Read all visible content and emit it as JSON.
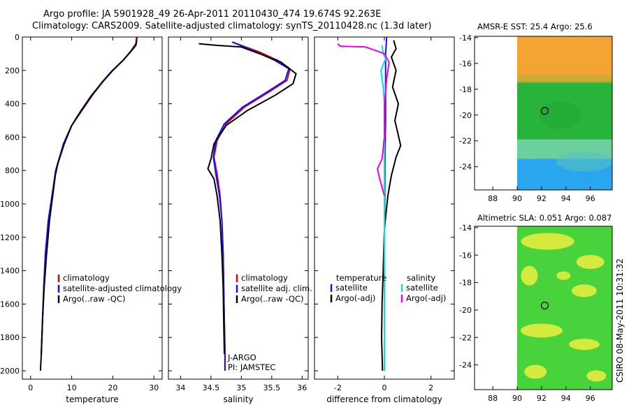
{
  "header": {
    "line1": "Argo profile: JA 5901928_49 26-Apr-2011 20110430_474 19.674S 92.263E",
    "line2": "Climatology: CARS2009. Satellite-adjusted climatology: synTS_20110428.nc (1.3d later)"
  },
  "sidenote": "CSIRO 08-May-2011 10:31:32",
  "colors": {
    "red": "#e00000",
    "blue": "#1010ff",
    "black": "#000000",
    "cyan": "#00e0e0",
    "magenta": "#ee00ee"
  },
  "chart_data": [
    {
      "id": "temperature",
      "type": "line",
      "xlabel": "temperature",
      "ylabel": "",
      "xlim": [
        -2,
        32
      ],
      "ylim": [
        2050,
        0
      ],
      "xticks": [
        0,
        10,
        20,
        30
      ],
      "yticks": [
        0,
        200,
        400,
        600,
        800,
        1000,
        1200,
        1400,
        1600,
        1800,
        2000
      ],
      "legend": [
        "climatology",
        "satellite-adjusted climatology",
        "Argo(..raw -QC)"
      ],
      "series": [
        {
          "name": "climatology",
          "color": "red",
          "points": [
            [
              25.8,
              0
            ],
            [
              25.6,
              40
            ],
            [
              24.5,
              80
            ],
            [
              22.5,
              140
            ],
            [
              20,
              200
            ],
            [
              17.5,
              270
            ],
            [
              15,
              350
            ],
            [
              12.5,
              440
            ],
            [
              10,
              530
            ],
            [
              8,
              640
            ],
            [
              6.2,
              800
            ],
            [
              5.2,
              950
            ],
            [
              4.3,
              1100
            ],
            [
              3.6,
              1300
            ],
            [
              3.2,
              1500
            ],
            [
              2.9,
              1700
            ],
            [
              2.6,
              1900
            ]
          ]
        },
        {
          "name": "satellite-adjusted climatology",
          "color": "blue",
          "points": [
            [
              25.9,
              0
            ],
            [
              25.7,
              40
            ],
            [
              24.6,
              80
            ],
            [
              22.5,
              140
            ],
            [
              19.9,
              200
            ],
            [
              17.4,
              270
            ],
            [
              14.9,
              350
            ],
            [
              12.4,
              440
            ],
            [
              10,
              530
            ],
            [
              8,
              640
            ],
            [
              6.1,
              800
            ],
            [
              5.2,
              950
            ],
            [
              4.3,
              1100
            ],
            [
              3.6,
              1300
            ],
            [
              3.2,
              1500
            ],
            [
              2.9,
              1700
            ],
            [
              2.6,
              1900
            ]
          ]
        },
        {
          "name": "Argo(..raw -QC)",
          "color": "black",
          "points": [
            [
              25.8,
              20
            ],
            [
              25.6,
              50
            ],
            [
              24.6,
              80
            ],
            [
              22.5,
              140
            ],
            [
              20,
              200
            ],
            [
              17.5,
              270
            ],
            [
              14.8,
              350
            ],
            [
              12.3,
              440
            ],
            [
              10,
              530
            ],
            [
              8.2,
              640
            ],
            [
              6.6,
              760
            ],
            [
              6,
              830
            ],
            [
              5.4,
              950
            ],
            [
              4.6,
              1100
            ],
            [
              3.9,
              1300
            ],
            [
              3.3,
              1500
            ],
            [
              2.9,
              1700
            ],
            [
              2.6,
              1900
            ],
            [
              2.4,
              2000
            ]
          ]
        }
      ]
    },
    {
      "id": "salinity",
      "type": "line",
      "xlabel": "salinity",
      "ylabel": "",
      "xlim": [
        33.8,
        36.1
      ],
      "ylim": [
        2050,
        0
      ],
      "xticks": [
        34,
        34.5,
        35,
        35.5,
        36
      ],
      "yticks": [
        0,
        200,
        400,
        600,
        800,
        1000,
        1200,
        1400,
        1600,
        1800,
        2000
      ],
      "legend": [
        "climatology",
        "satellite adj. clim.",
        "Argo(..raw -QC)"
      ],
      "annotation": [
        "J-ARGO",
        "PI: JAMSTEC"
      ],
      "series": [
        {
          "name": "climatology",
          "color": "red",
          "points": [
            [
              34.85,
              30
            ],
            [
              35.3,
              90
            ],
            [
              35.6,
              140
            ],
            [
              35.8,
              190
            ],
            [
              35.75,
              260
            ],
            [
              35.45,
              330
            ],
            [
              35.05,
              420
            ],
            [
              34.75,
              520
            ],
            [
              34.6,
              620
            ],
            [
              34.55,
              720
            ],
            [
              34.6,
              820
            ],
            [
              34.65,
              950
            ],
            [
              34.68,
              1100
            ],
            [
              34.7,
              1300
            ],
            [
              34.71,
              1500
            ],
            [
              34.72,
              1700
            ],
            [
              34.73,
              1900
            ],
            [
              34.73,
              2000
            ]
          ]
        },
        {
          "name": "satellite adj. clim.",
          "color": "blue",
          "points": [
            [
              34.85,
              30
            ],
            [
              35.25,
              90
            ],
            [
              35.55,
              140
            ],
            [
              35.78,
              190
            ],
            [
              35.72,
              260
            ],
            [
              35.42,
              330
            ],
            [
              35.02,
              420
            ],
            [
              34.72,
              520
            ],
            [
              34.58,
              620
            ],
            [
              34.54,
              720
            ],
            [
              34.58,
              820
            ],
            [
              34.64,
              950
            ],
            [
              34.68,
              1100
            ],
            [
              34.7,
              1300
            ],
            [
              34.71,
              1500
            ],
            [
              34.72,
              1700
            ],
            [
              34.73,
              1900
            ],
            [
              34.73,
              2000
            ]
          ]
        },
        {
          "name": "Argo(..raw -QC)",
          "color": "black",
          "points": [
            [
              34.3,
              40
            ],
            [
              34.6,
              50
            ],
            [
              35,
              60
            ],
            [
              35.3,
              100
            ],
            [
              35.65,
              150
            ],
            [
              35.9,
              220
            ],
            [
              35.85,
              280
            ],
            [
              35.55,
              350
            ],
            [
              35.1,
              440
            ],
            [
              34.75,
              530
            ],
            [
              34.55,
              640
            ],
            [
              34.5,
              730
            ],
            [
              34.45,
              790
            ],
            [
              34.55,
              850
            ],
            [
              34.6,
              950
            ],
            [
              34.65,
              1100
            ],
            [
              34.68,
              1300
            ],
            [
              34.7,
              1500
            ],
            [
              34.71,
              1700
            ],
            [
              34.72,
              1900
            ]
          ]
        }
      ]
    },
    {
      "id": "difference",
      "type": "line",
      "xlabel": "difference from climatology",
      "ylabel": "",
      "xlim": [
        -3,
        3
      ],
      "ylim": [
        2050,
        0
      ],
      "xticks": [
        -2,
        0,
        2
      ],
      "yticks": [
        0,
        200,
        400,
        600,
        800,
        1000,
        1200,
        1400,
        1600,
        1800,
        2000
      ],
      "legend_left": [
        "temperature",
        "satellite",
        "Argo(-adj)"
      ],
      "legend_right": [
        "salinity",
        "satellite",
        "Argo(-adj)"
      ],
      "series": [
        {
          "name": "temperature satellite",
          "color": "blue",
          "points": [
            [
              0.1,
              0
            ],
            [
              0.05,
              100
            ],
            [
              0.05,
              300
            ],
            [
              0.05,
              500
            ],
            [
              0.03,
              700
            ],
            [
              0.02,
              900
            ],
            [
              0,
              1200
            ],
            [
              0,
              1500
            ],
            [
              0,
              1800
            ],
            [
              0,
              2000
            ]
          ]
        },
        {
          "name": "temperature Argo(-adj)",
          "color": "black",
          "points": [
            [
              0.4,
              20
            ],
            [
              0.5,
              70
            ],
            [
              0.3,
              120
            ],
            [
              0.5,
              200
            ],
            [
              0.35,
              300
            ],
            [
              0.6,
              400
            ],
            [
              0.45,
              500
            ],
            [
              0.7,
              650
            ],
            [
              0.5,
              720
            ],
            [
              0.3,
              830
            ],
            [
              0.15,
              950
            ],
            [
              0,
              1150
            ],
            [
              -0.05,
              1400
            ],
            [
              -0.1,
              1600
            ],
            [
              -0.12,
              1800
            ],
            [
              -0.08,
              2000
            ]
          ]
        },
        {
          "name": "salinity satellite",
          "color": "cyan",
          "points": [
            [
              -0.1,
              50
            ],
            [
              -0.05,
              100
            ],
            [
              0.05,
              130
            ],
            [
              -0.15,
              200
            ],
            [
              -0.05,
              300
            ],
            [
              0,
              400
            ],
            [
              0,
              600
            ],
            [
              0,
              800
            ],
            [
              0,
              1000
            ],
            [
              0,
              1300
            ],
            [
              0,
              1600
            ],
            [
              0,
              2000
            ]
          ]
        },
        {
          "name": "salinity Argo(-adj)",
          "color": "magenta",
          "points": [
            [
              -2,
              40
            ],
            [
              -1.9,
              55
            ],
            [
              -0.8,
              60
            ],
            [
              -0.4,
              80
            ],
            [
              0,
              100
            ],
            [
              0.2,
              150
            ],
            [
              0.1,
              250
            ],
            [
              0,
              400
            ],
            [
              0,
              600
            ],
            [
              -0.1,
              730
            ],
            [
              -0.3,
              790
            ],
            [
              -0.2,
              850
            ],
            [
              0,
              950
            ]
          ]
        }
      ]
    },
    {
      "id": "sst_map",
      "type": "heatmap",
      "title": "AMSR-E SST: 25.4 Argo: 25.6",
      "xlim": [
        86.5,
        97.8
      ],
      "ylim": [
        -25.8,
        -13.9
      ],
      "xticks": [
        88,
        90,
        92,
        94,
        96
      ],
      "yticks": [
        -14,
        -16,
        -18,
        -20,
        -22,
        -24
      ],
      "data_x_range": [
        90,
        97.8
      ],
      "marker": [
        92.263,
        -19.674
      ],
      "bands": [
        {
          "y": [
            -14,
            -17.5
          ],
          "color": "#f4a432"
        },
        {
          "y": [
            -17.5,
            -22
          ],
          "color": "#27b33c"
        },
        {
          "y": [
            -22,
            -23.5
          ],
          "color": "#6ccf9e"
        },
        {
          "y": [
            -23.5,
            -25.8
          ],
          "color": "#2aa6ee"
        }
      ]
    },
    {
      "id": "sla_map",
      "type": "heatmap",
      "title": "Altimetric SLA: 0.051 Argo: 0.087",
      "xlim": [
        86.5,
        97.8
      ],
      "ylim": [
        -25.8,
        -13.9
      ],
      "xticks": [
        88,
        90,
        92,
        94,
        96
      ],
      "yticks": [
        -14,
        -16,
        -18,
        -20,
        -22,
        -24
      ],
      "data_x_range": [
        90,
        97.8
      ],
      "marker": [
        92.263,
        -19.674
      ],
      "bands": [
        {
          "y": [
            -14,
            -25.8
          ],
          "color": "#48d23c"
        }
      ],
      "patches_color": "#e4ec3e"
    }
  ]
}
